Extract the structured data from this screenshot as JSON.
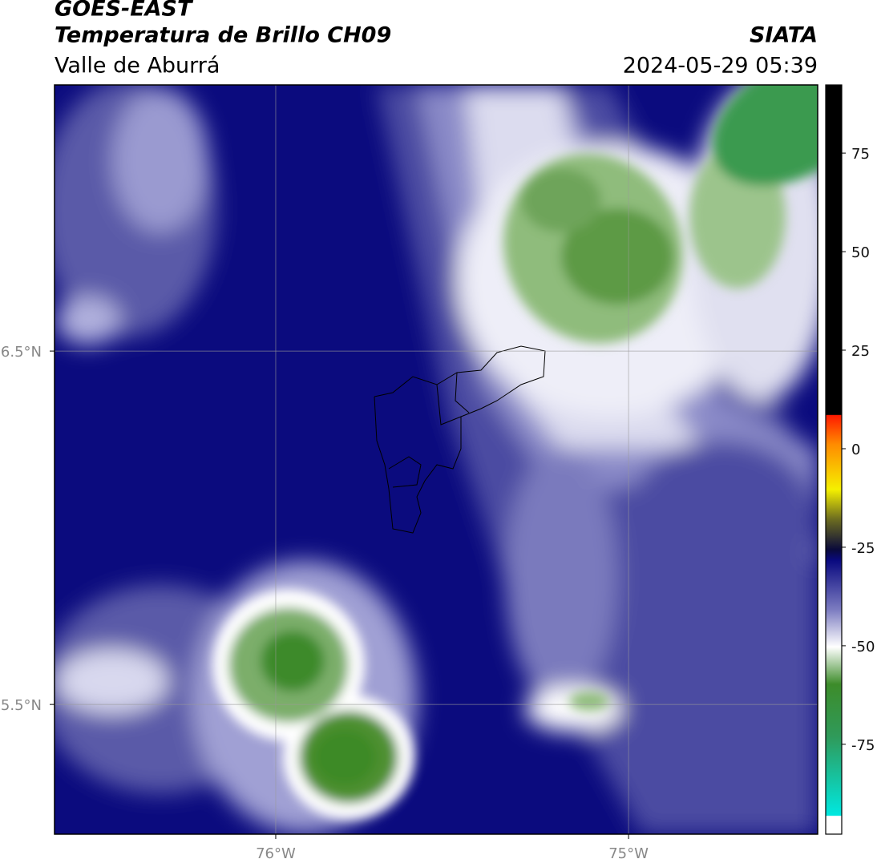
{
  "chart_data": {
    "type": "map",
    "title": "GOES-EAST",
    "subtitle": "Temperatura de Brillo CH09",
    "region": "Valle de Aburrá",
    "source": "SIATA",
    "date": "2024-05-29 05:39",
    "xlim": [
      -76.627,
      -74.464
    ],
    "ylim": [
      5.133,
      7.253
    ],
    "xticks": [
      {
        "value": -76,
        "label": "76°W"
      },
      {
        "value": -75,
        "label": "75°W"
      }
    ],
    "yticks": [
      {
        "value": 5.5,
        "label": "5.5°N"
      },
      {
        "value": 6.5,
        "label": "6.5°N"
      }
    ],
    "grid": true,
    "colorbar": {
      "lim": [
        -97.8,
        92.3
      ],
      "ticks": [
        75,
        50,
        25,
        0,
        -25,
        -50,
        -75
      ]
    }
  }
}
